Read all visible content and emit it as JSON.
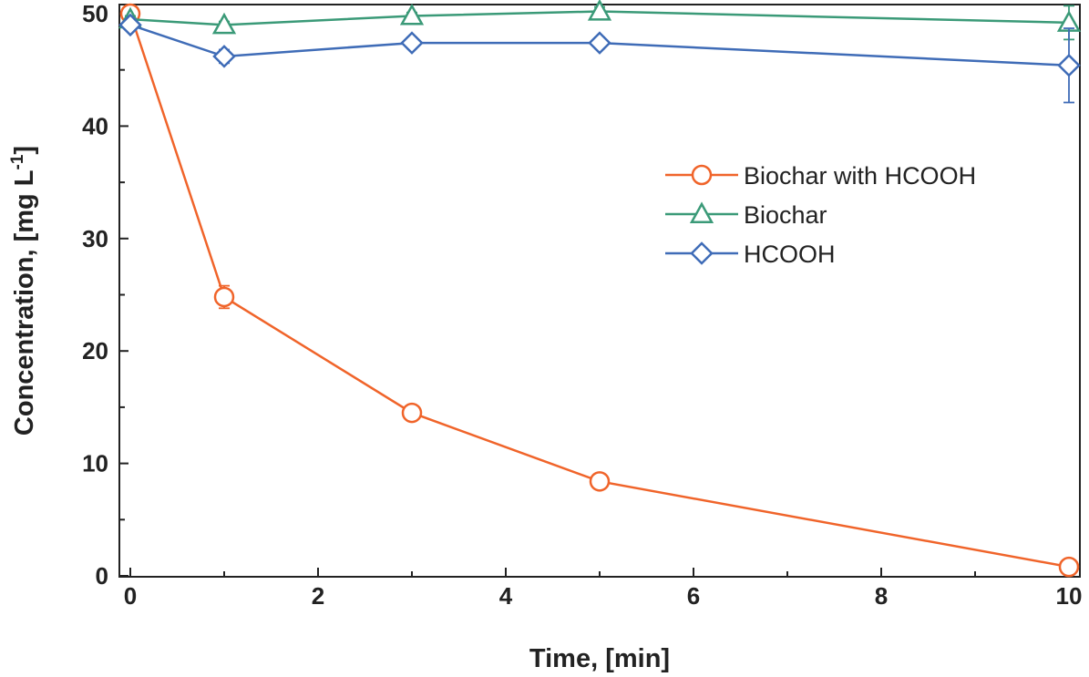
{
  "chart_data": {
    "type": "line",
    "title": "",
    "xlabel": "Time, [min]",
    "ylabel": "Concentration, [mg L",
    "ylabel_superscript": "-1",
    "ylabel_suffix": "]",
    "xlim": [
      0,
      10
    ],
    "ylim": [
      0,
      50
    ],
    "xticks": [
      0,
      2,
      4,
      6,
      8,
      10
    ],
    "yticks": [
      0,
      10,
      20,
      30,
      40,
      50
    ],
    "grid": false,
    "legend_position": "upper-right",
    "series": [
      {
        "name": "Biochar with HCOOH",
        "color": "#f0642a",
        "marker": "circle",
        "x": [
          0,
          1,
          3,
          5,
          10
        ],
        "values": [
          50,
          24.8,
          14.5,
          8.4,
          0.8
        ],
        "errors": [
          0.5,
          1.0,
          0.5,
          0.5,
          0.4
        ]
      },
      {
        "name": "Biochar",
        "color": "#3b9a78",
        "marker": "triangle",
        "x": [
          0,
          1,
          3,
          5,
          10
        ],
        "values": [
          49.5,
          49.0,
          49.8,
          50.2,
          49.2
        ],
        "errors": [
          0.3,
          0.3,
          0.3,
          0.4,
          1.5
        ]
      },
      {
        "name": "HCOOH",
        "color": "#3f6cb7",
        "marker": "diamond",
        "x": [
          0,
          1,
          3,
          5,
          10
        ],
        "values": [
          49.0,
          46.2,
          47.4,
          47.4,
          45.4
        ],
        "errors": [
          0.3,
          0.6,
          0.5,
          0.5,
          3.3
        ]
      }
    ]
  }
}
